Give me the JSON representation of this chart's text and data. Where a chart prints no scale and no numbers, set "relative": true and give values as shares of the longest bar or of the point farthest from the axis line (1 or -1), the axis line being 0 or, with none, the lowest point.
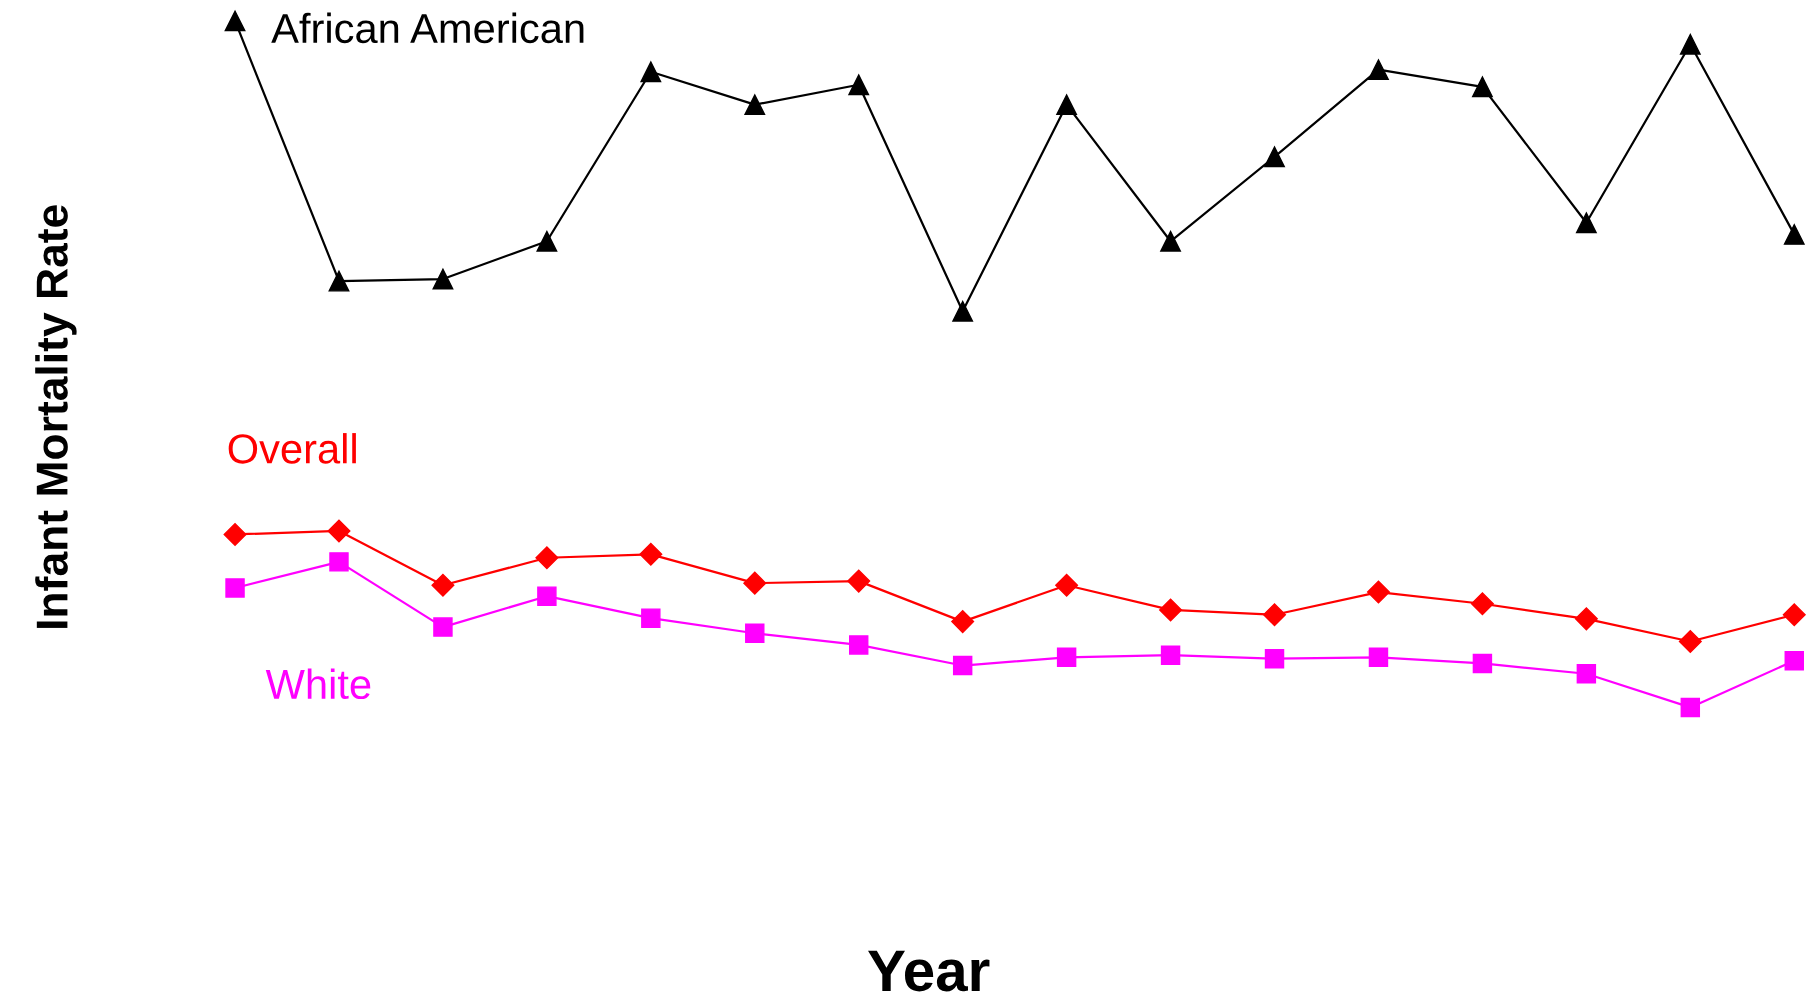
{
  "chart_data": {
    "type": "line",
    "relative": true,
    "xlabel": "Year",
    "ylabel": "Infant Mortality Rate",
    "line_style": "solid",
    "categories": [
      null,
      null,
      null,
      null,
      null,
      null,
      null,
      null,
      null,
      null,
      null,
      null,
      null,
      null,
      null,
      null
    ],
    "series": [
      {
        "name": "African American",
        "color": "#000000",
        "marker": "triangle",
        "values": [
          1.0,
          0.621,
          0.624,
          0.679,
          0.926,
          0.878,
          0.907,
          0.577,
          0.878,
          0.679,
          0.802,
          0.929,
          0.904,
          0.706,
          0.966,
          0.689
        ]
      },
      {
        "name": "Overall",
        "color": "#ff0000",
        "marker": "diamond",
        "values": [
          0.252,
          0.257,
          0.178,
          0.218,
          0.223,
          0.181,
          0.184,
          0.125,
          0.178,
          0.142,
          0.135,
          0.168,
          0.151,
          0.129,
          0.096,
          0.135
        ]
      },
      {
        "name": "White",
        "color": "#ff00ff",
        "marker": "square",
        "values": [
          0.174,
          0.212,
          0.117,
          0.162,
          0.13,
          0.108,
          0.091,
          0.061,
          0.073,
          0.076,
          0.071,
          0.073,
          0.064,
          0.049,
          0.0,
          0.068
        ]
      }
    ]
  }
}
